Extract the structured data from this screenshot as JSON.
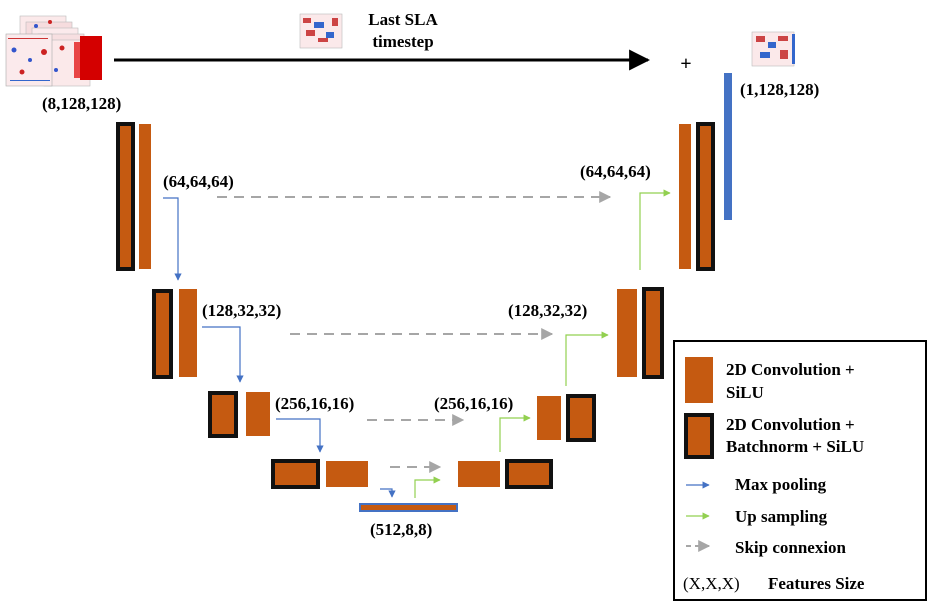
{
  "top": {
    "title_line1": "Last SLA",
    "title_line2": "timestep",
    "plus": "+"
  },
  "sizes": {
    "input": "(8,128,128)",
    "output": "(1,128,128)",
    "enc1": "(64,64,64)",
    "dec1": "(64,64,64)",
    "enc2": "(128,32,32)",
    "dec2": "(128,32,32)",
    "enc3": "(256,16,16)",
    "dec3": "(256,16,16)",
    "bottleneck": "(512,8,8)"
  },
  "legend": {
    "conv_line1": "2D Convolution +",
    "conv_line2": "SiLU",
    "convbn_line1": "2D Convolution +",
    "convbn_line2": "Batchnorm + SiLU",
    "maxpool": "Max pooling",
    "upsample": "Up sampling",
    "skip": "Skip connexion",
    "feat_symbol": "(X,X,X)",
    "feat_label": "Features Size"
  },
  "colors": {
    "conv": "#c55a11",
    "border": "#111111",
    "max_pooling": "#4472c4",
    "up_sampling": "#92d050",
    "skip": "#a6a6a6",
    "output_bar": "#4472c4"
  }
}
